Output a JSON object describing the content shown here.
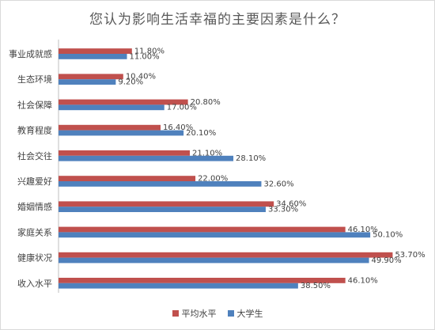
{
  "chart_data": {
    "type": "bar",
    "orientation": "horizontal",
    "title": "您认为影响生活幸福的主要因素是什么？",
    "categories": [
      "事业成就感",
      "生态环境",
      "社会保障",
      "教育程度",
      "社会交往",
      "兴趣爱好",
      "婚姻情感",
      "家庭关系",
      "健康状况",
      "收入水平"
    ],
    "series": [
      {
        "name": "平均水平",
        "color": "#c0504d",
        "values": [
          11.8,
          10.4,
          20.8,
          16.4,
          21.1,
          22.0,
          34.6,
          46.1,
          53.7,
          46.1
        ],
        "labels": [
          "11.80%",
          "10.40%",
          "20.80%",
          "16.40%",
          "21.10%",
          "22.00%",
          "34.60%",
          "46.10%",
          "53.70%",
          "46.10%"
        ]
      },
      {
        "name": "大学生",
        "color": "#4f81bd",
        "values": [
          11.0,
          9.2,
          17.0,
          20.1,
          28.1,
          32.6,
          33.3,
          50.1,
          49.9,
          38.5
        ],
        "labels": [
          "11.00%",
          "9.20%",
          "17.00%",
          "20.10%",
          "28.10%",
          "32.60%",
          "33.30%",
          "50.10%",
          "49.90%",
          "38.50%"
        ]
      }
    ],
    "xlim": [
      0,
      60
    ],
    "grid": false,
    "legend_position": "bottom"
  }
}
